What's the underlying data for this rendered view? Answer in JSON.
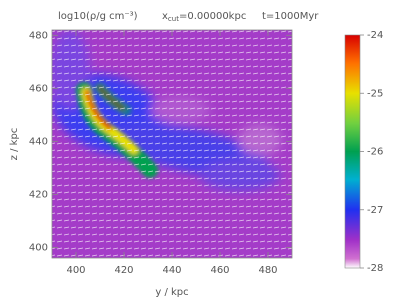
{
  "chart_data": {
    "type": "heatmap",
    "title": "log10(ρ/g cm⁻³)",
    "cut_label": {
      "base": "x",
      "sub": "cut",
      "rest": "=0.00000kpc"
    },
    "time_label": "t=1000Myr",
    "xlabel": "y / kpc",
    "ylabel": "z / kpc",
    "xlim": [
      390,
      490
    ],
    "xticks": [
      400,
      420,
      440,
      460,
      480
    ],
    "ylim": [
      396,
      482
    ],
    "yticks": [
      400,
      420,
      440,
      460,
      480
    ],
    "clim": [
      -28,
      -24
    ],
    "cticks": [
      -24,
      -25,
      -26,
      -27,
      -28
    ]
  }
}
